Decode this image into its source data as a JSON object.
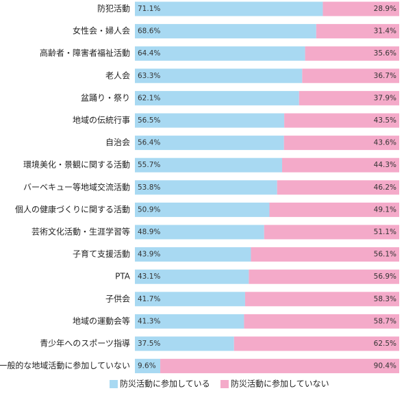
{
  "chart_data": {
    "type": "stacked-bar-horizontal",
    "categories": [
      "防犯活動",
      "女性会・婦人会",
      "高齢者・障害者福祉活動",
      "老人会",
      "盆踊り・祭り",
      "地域の伝統行事",
      "自治会",
      "環境美化・景観に関する活動",
      "バーベキュー等地域交流活動",
      "個人の健康づくりに関する活動",
      "芸術文化活動・生涯学習等",
      "子育て支援活動",
      "PTA",
      "子供会",
      "地域の運動会等",
      "青少年へのスポーツ指導",
      "一般的な地域活動に参加していない"
    ],
    "series": [
      {
        "name": "防災活動に参加している",
        "color": "#a8d9f2",
        "values": [
          71.1,
          68.6,
          64.4,
          63.3,
          62.1,
          56.5,
          56.4,
          55.7,
          53.8,
          50.9,
          48.9,
          43.9,
          43.1,
          41.7,
          41.3,
          37.5,
          9.6
        ],
        "value_labels": [
          "71.1%",
          "68.6%",
          "64.4%",
          "63.3%",
          "62.1%",
          "56.5%",
          "56.4%",
          "55.7%",
          "53.8%",
          "50.9%",
          "48.9%",
          "43.9%",
          "43.1%",
          "41.7%",
          "41.3%",
          "37.5%",
          "9.6%"
        ]
      },
      {
        "name": "防災活動に参加していない",
        "color": "#f4aac9",
        "values": [
          28.9,
          31.4,
          35.6,
          36.7,
          37.9,
          43.5,
          43.6,
          44.3,
          46.2,
          49.1,
          51.1,
          56.1,
          56.9,
          58.3,
          58.7,
          62.5,
          90.4
        ],
        "value_labels": [
          "28.9%",
          "31.4%",
          "35.6%",
          "36.7%",
          "37.9%",
          "43.5%",
          "43.6%",
          "44.3%",
          "46.2%",
          "49.1%",
          "51.1%",
          "56.1%",
          "56.9%",
          "58.3%",
          "58.7%",
          "62.5%",
          "90.4%"
        ]
      }
    ]
  }
}
